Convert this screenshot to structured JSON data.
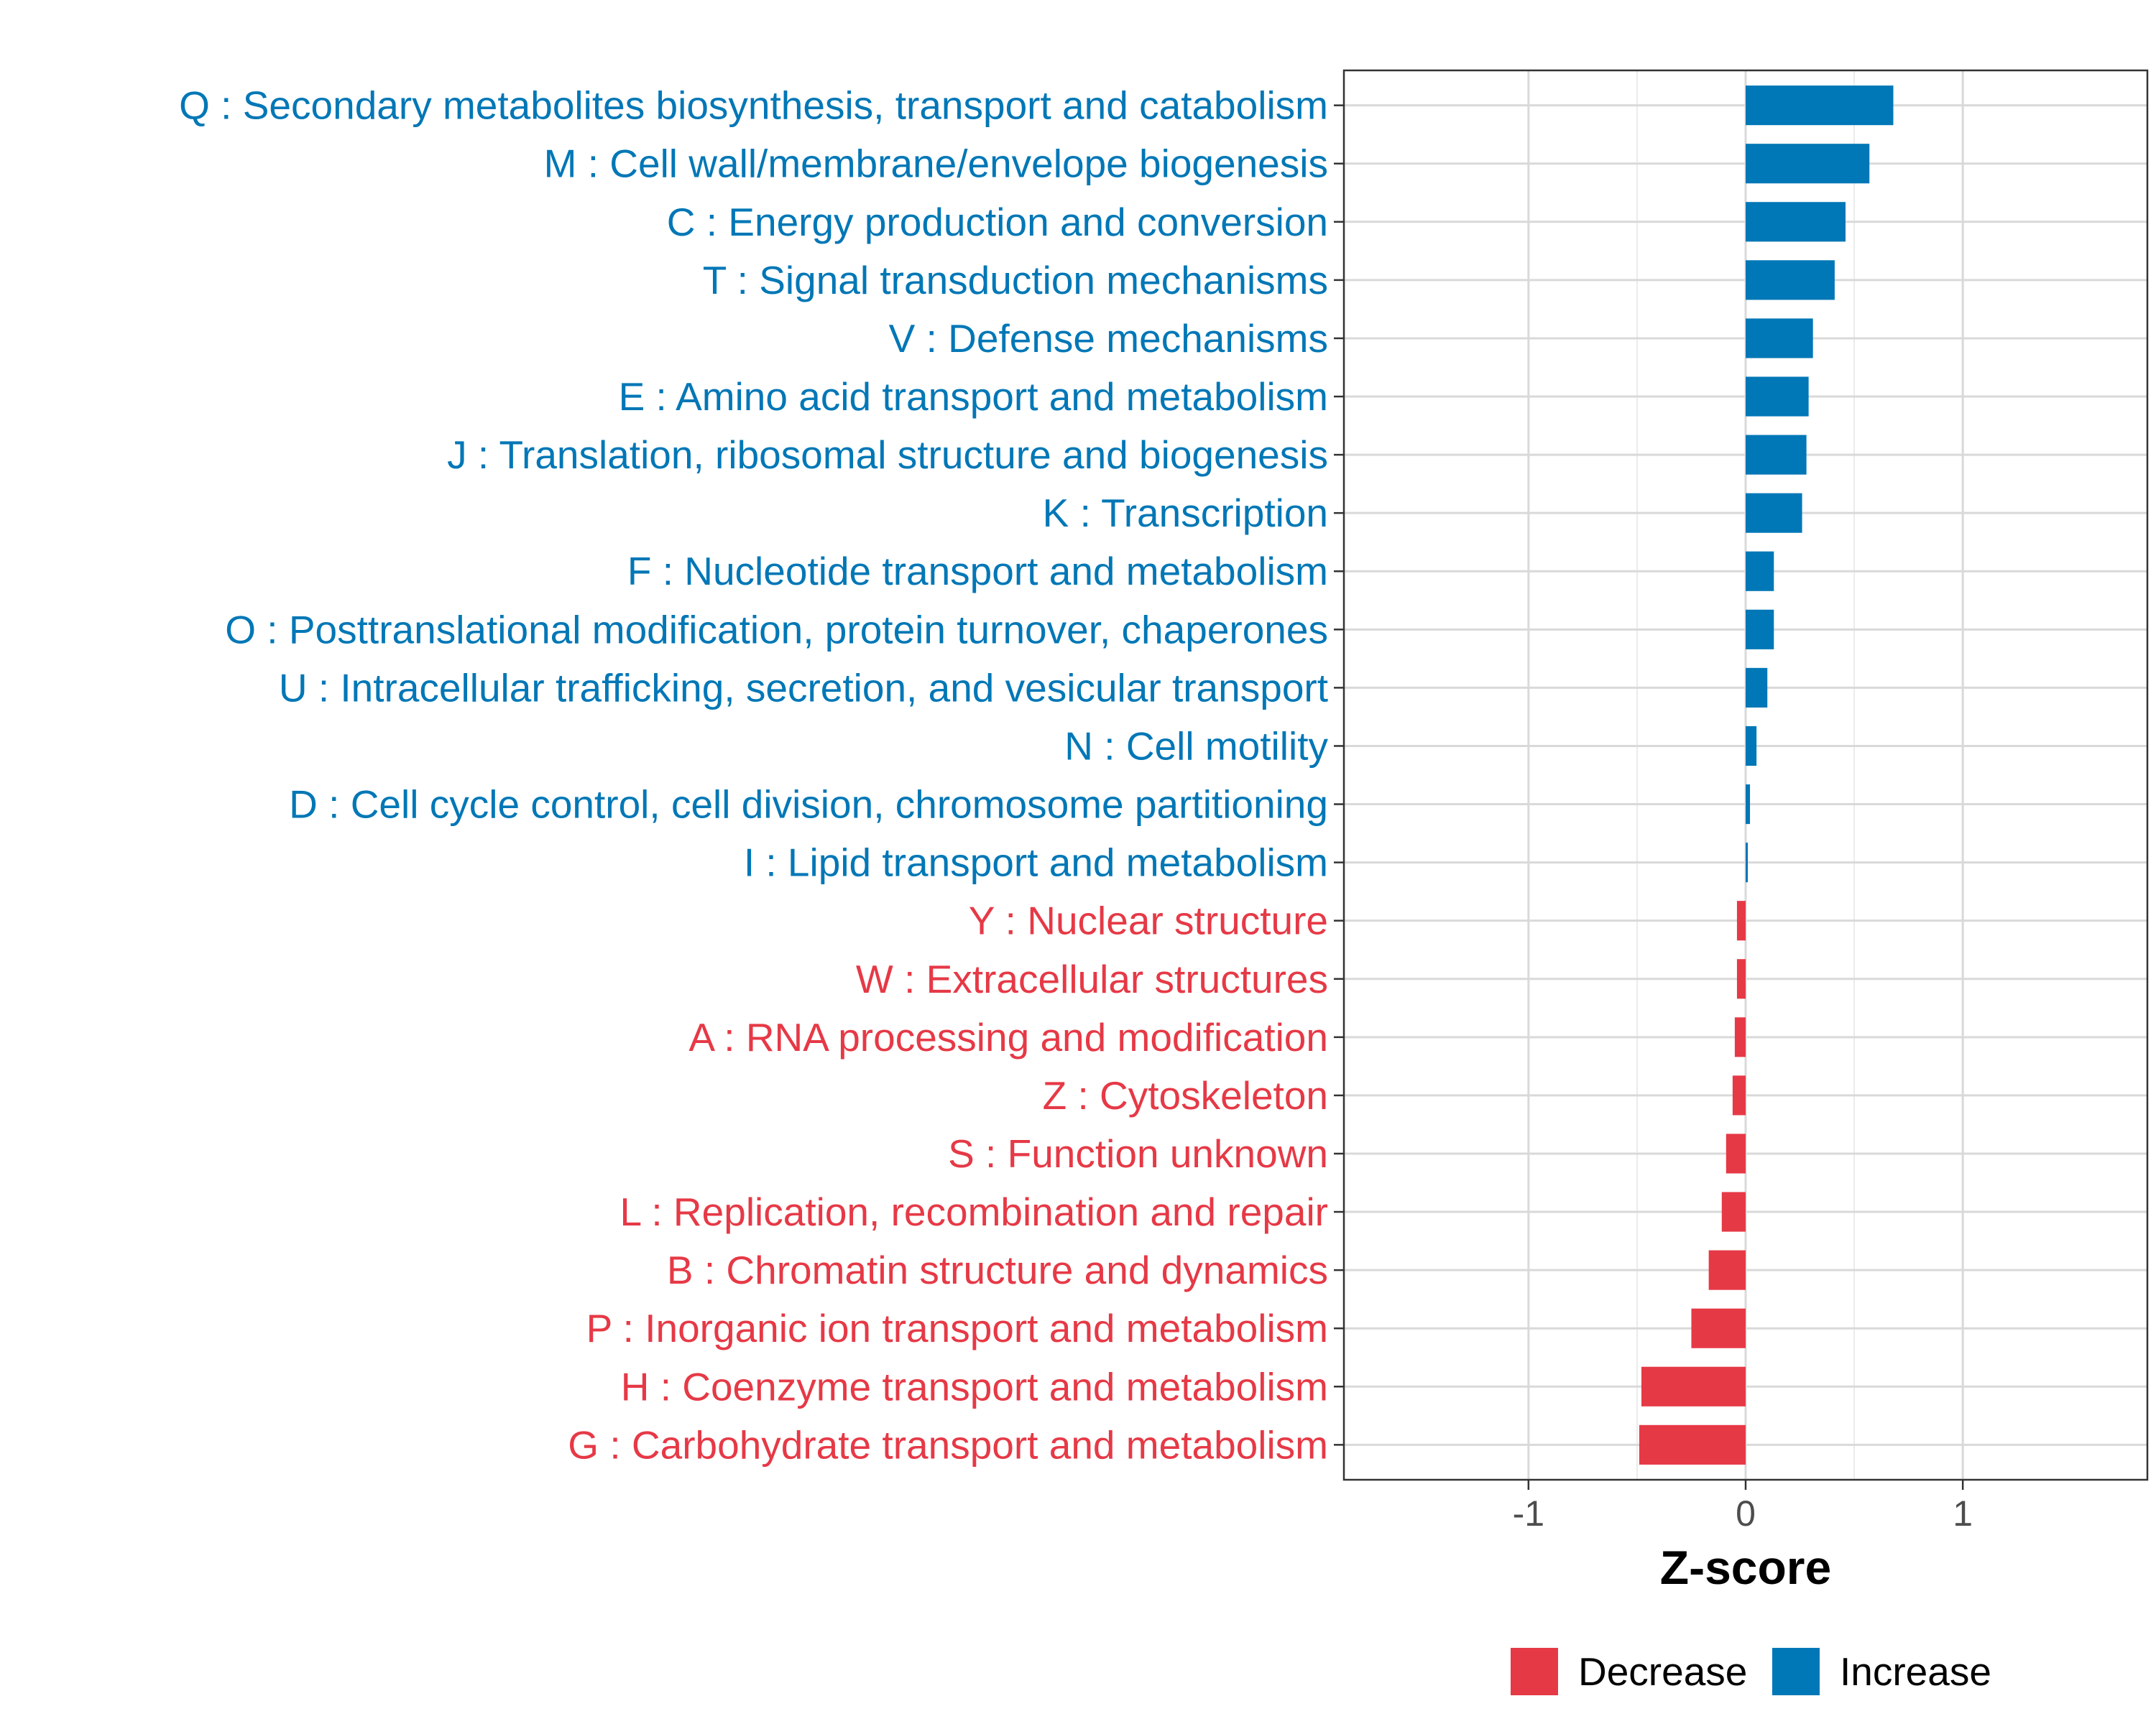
{
  "chart_data": {
    "type": "bar",
    "orientation": "horizontal",
    "title": "",
    "xlabel": "Z-score",
    "ylabel": "",
    "xlim": [
      -1.85,
      1.85
    ],
    "xticks": [
      -1,
      0,
      1
    ],
    "xtick_labels": [
      "-1",
      "0",
      "1"
    ],
    "grid": true,
    "legend_position": "bottom",
    "colors": {
      "Decrease": "#e63946",
      "Increase": "#0077b6"
    },
    "legend": [
      {
        "name": "Decrease",
        "color": "#e63946"
      },
      {
        "name": "Increase",
        "color": "#0077b6"
      }
    ],
    "categories": [
      "Q : Secondary metabolites biosynthesis, transport and catabolism",
      "M : Cell wall/membrane/envelope biogenesis",
      "C : Energy production and conversion",
      "T : Signal transduction mechanisms",
      "V : Defense mechanisms",
      "E : Amino acid transport and metabolism",
      "J : Translation, ribosomal structure and biogenesis",
      "K : Transcription",
      "F : Nucleotide transport and metabolism",
      "O : Posttranslational modification, protein turnover, chaperones",
      "U : Intracellular trafficking, secretion, and vesicular transport",
      "N : Cell motility",
      "D : Cell cycle control, cell division, chromosome partitioning",
      "I : Lipid transport and metabolism",
      "Y : Nuclear structure",
      "W : Extracellular structures",
      "A : RNA processing and modification",
      "Z : Cytoskeleton",
      "S : Function unknown",
      "L : Replication, recombination and repair",
      "B : Chromatin structure and dynamics",
      "P : Inorganic ion transport and metabolism",
      "H : Coenzyme transport and metabolism",
      "G : Carbohydrate transport and metabolism"
    ],
    "values": [
      0.68,
      0.57,
      0.46,
      0.41,
      0.31,
      0.29,
      0.28,
      0.26,
      0.13,
      0.13,
      0.1,
      0.05,
      0.02,
      0.01,
      -0.04,
      -0.04,
      -0.05,
      -0.06,
      -0.09,
      -0.11,
      -0.17,
      -0.25,
      -0.48,
      -0.49
    ],
    "groups": [
      "Increase",
      "Increase",
      "Increase",
      "Increase",
      "Increase",
      "Increase",
      "Increase",
      "Increase",
      "Increase",
      "Increase",
      "Increase",
      "Increase",
      "Increase",
      "Increase",
      "Decrease",
      "Decrease",
      "Decrease",
      "Decrease",
      "Decrease",
      "Decrease",
      "Decrease",
      "Decrease",
      "Decrease",
      "Decrease"
    ]
  }
}
